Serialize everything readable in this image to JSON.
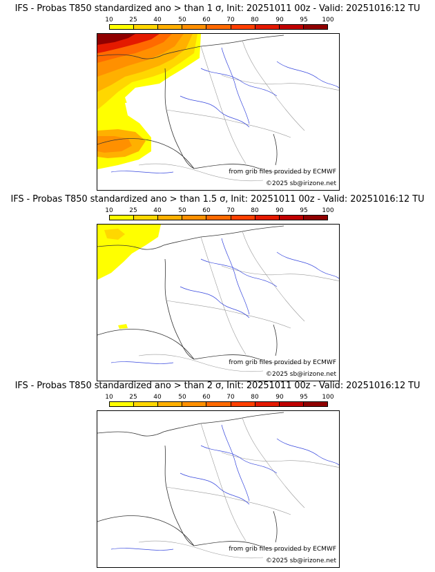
{
  "colorbar": {
    "ticks": [
      "10",
      "25",
      "40",
      "50",
      "60",
      "70",
      "80",
      "90",
      "95",
      "100"
    ],
    "colors": [
      "#ffff00",
      "#ffd700",
      "#ffb000",
      "#ff9000",
      "#ff6a00",
      "#ff4000",
      "#e41a00",
      "#c00000",
      "#900000"
    ]
  },
  "credits": {
    "source": "from grib files provided by ECMWF",
    "copyright": "©2025 sb@irizone.net"
  },
  "panels": [
    {
      "title": "IFS - Probas T850  standardized ano > than 1 σ, Init: 20251011 00z - Valid: 20251016:12 TU",
      "threshold_sigma": "1"
    },
    {
      "title": "IFS - Probas T850  standardized ano > than 1.5 σ, Init: 20251011 00z - Valid: 20251016:12 TU",
      "threshold_sigma": "1.5"
    },
    {
      "title": "IFS - Probas T850  standardized ano > than 2 σ, Init: 20251011 00z - Valid: 20251016:12 TU",
      "threshold_sigma": "2"
    }
  ]
}
